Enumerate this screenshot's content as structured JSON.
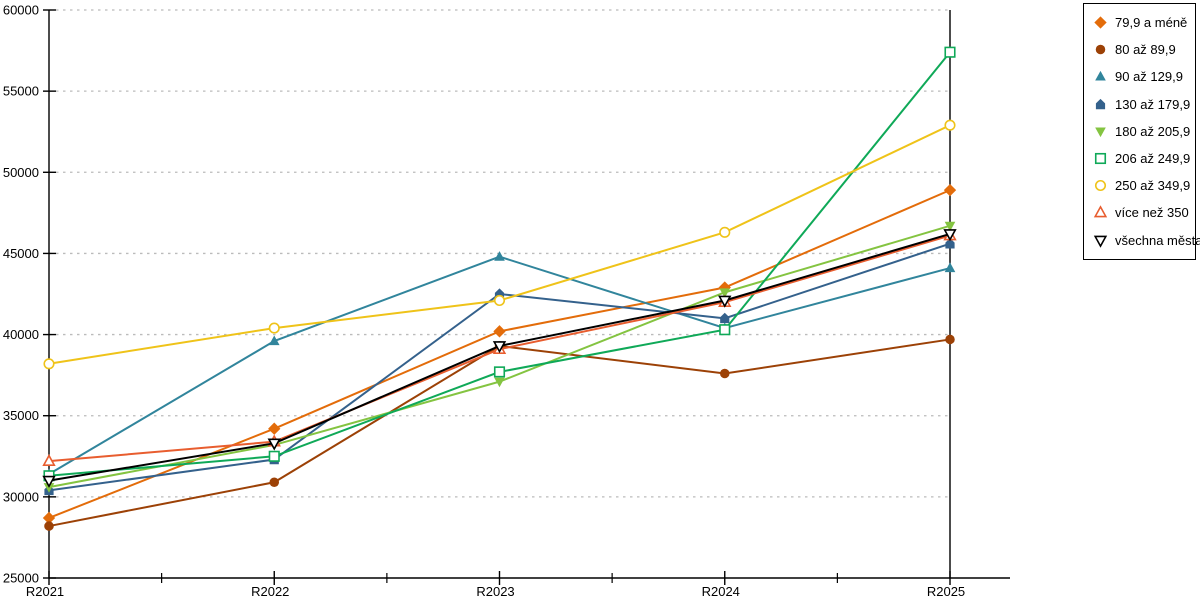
{
  "chart_data": {
    "type": "line",
    "title": "",
    "xlabel": "",
    "ylabel": "",
    "categories": [
      "R2021",
      "R2022",
      "R2023",
      "R2024",
      "R2025"
    ],
    "y_ticks": [
      25000,
      30000,
      35000,
      40000,
      45000,
      50000,
      55000,
      60000
    ],
    "ylim": [
      25000,
      60000
    ],
    "grid": "horizontal-dashed",
    "legend_position": "top-right",
    "series": [
      {
        "name": "79,9 a méně",
        "color": "#E36C0A",
        "marker": "diamond",
        "values": [
          28700,
          34200,
          40200,
          42900,
          48900
        ]
      },
      {
        "name": "80 až 89,9",
        "color": "#9C4106",
        "marker": "circle",
        "values": [
          28200,
          30900,
          39300,
          37600,
          39700
        ]
      },
      {
        "name": "90 až 129,9",
        "color": "#31859C",
        "marker": "triangle-up",
        "values": [
          31400,
          39600,
          44800,
          40400,
          44100
        ]
      },
      {
        "name": "130 až 179,9",
        "color": "#34618C",
        "marker": "pentagon",
        "values": [
          30400,
          32300,
          42500,
          41000,
          45600
        ]
      },
      {
        "name": "180 až 205,9",
        "color": "#84C441",
        "marker": "triangle-down",
        "values": [
          30600,
          33200,
          37100,
          42600,
          46700
        ]
      },
      {
        "name": "206 až 249,9",
        "color": "#0FA958",
        "marker": "square-open",
        "values": [
          31300,
          32500,
          37700,
          40300,
          57400
        ]
      },
      {
        "name": "250 až 349,9",
        "color": "#EFC319",
        "marker": "circle-open",
        "values": [
          38200,
          40400,
          42100,
          46300,
          52900
        ]
      },
      {
        "name": "více než 350",
        "color": "#E85D2F",
        "marker": "triangle-up-open",
        "values": [
          32200,
          33400,
          39100,
          42000,
          46100
        ]
      },
      {
        "name": "všechna města",
        "color": "#000000",
        "marker": "triangle-down-open",
        "values": [
          31000,
          33300,
          39300,
          42100,
          46200
        ]
      }
    ],
    "colors": {
      "axis": "#000000",
      "gridline": "#BBBBBB",
      "background": "#FFFFFF"
    }
  }
}
